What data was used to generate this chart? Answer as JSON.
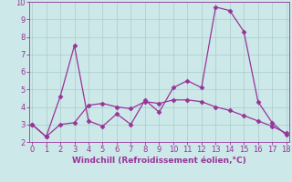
{
  "xlabel": "Windchill (Refroidissement éolien,°C)",
  "line1_x": [
    0,
    1,
    2,
    3,
    4,
    5,
    6,
    7,
    8,
    9,
    10,
    11,
    12,
    13,
    14,
    15,
    16,
    17,
    18
  ],
  "line1_y": [
    3.0,
    2.3,
    4.6,
    7.5,
    3.2,
    2.9,
    3.6,
    3.0,
    4.4,
    3.7,
    5.1,
    5.5,
    5.1,
    9.7,
    9.5,
    8.3,
    4.3,
    3.1,
    2.4
  ],
  "line2_x": [
    0,
    1,
    2,
    3,
    4,
    5,
    6,
    7,
    8,
    9,
    10,
    11,
    12,
    13,
    14,
    15,
    16,
    17,
    18
  ],
  "line2_y": [
    3.0,
    2.3,
    3.0,
    3.1,
    4.1,
    4.2,
    4.0,
    3.9,
    4.3,
    4.2,
    4.4,
    4.4,
    4.3,
    4.0,
    3.8,
    3.5,
    3.2,
    2.9,
    2.5
  ],
  "line_color": "#993399",
  "bg_color": "#cce8e8",
  "grid_color": "#aacccc",
  "ylim": [
    2,
    10
  ],
  "xlim": [
    -0.2,
    18.2
  ],
  "yticks": [
    2,
    3,
    4,
    5,
    6,
    7,
    8,
    9,
    10
  ],
  "xticks": [
    0,
    1,
    2,
    3,
    4,
    5,
    6,
    7,
    8,
    9,
    10,
    11,
    12,
    13,
    14,
    15,
    16,
    17,
    18
  ],
  "marker": "D",
  "marker_size": 2.5,
  "label_fontsize": 6.5,
  "tick_fontsize": 6.0
}
